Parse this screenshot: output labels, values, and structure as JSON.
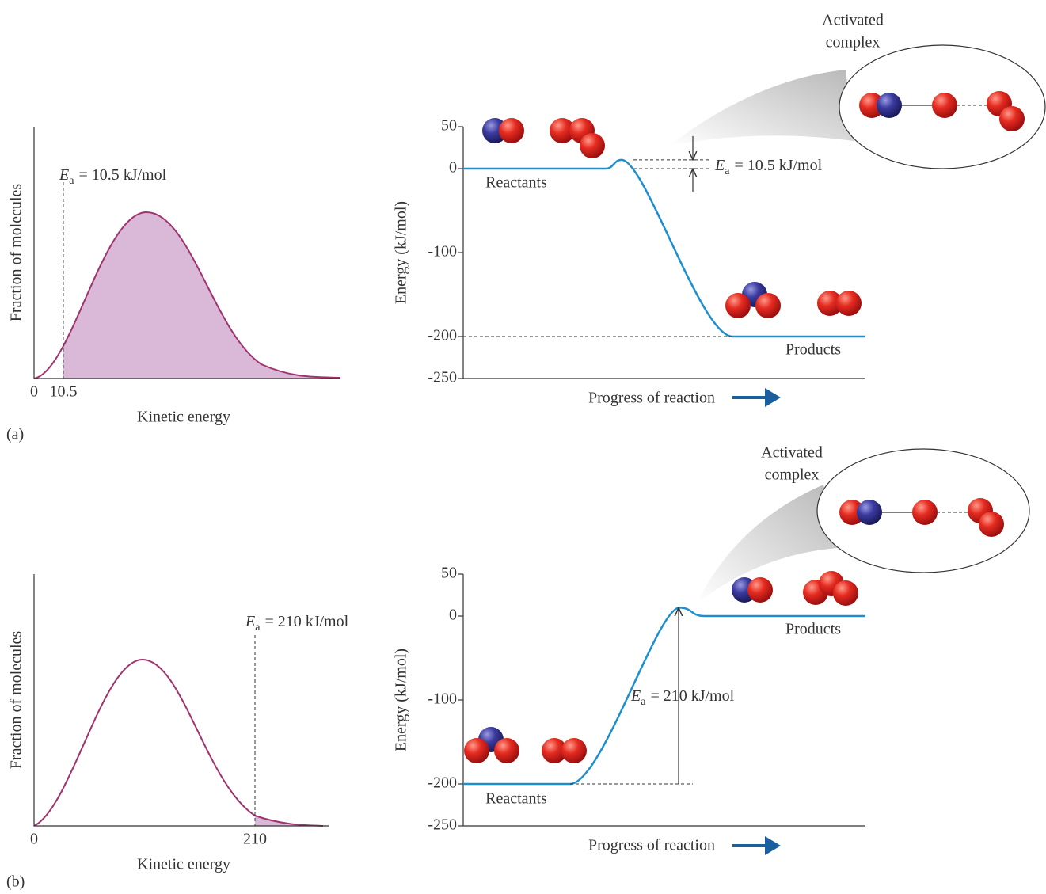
{
  "chart_data": [
    {
      "type": "area",
      "panel": "(a)",
      "xlabel": "Kinetic energy",
      "ylabel": "Fraction of molecules",
      "xlim": [
        0,
        110
      ],
      "xticks": [
        0,
        10.5
      ],
      "fill": "#d9b8d8",
      "color": "#a0336e",
      "ea_label": {
        "symbol": "E",
        "subscript": "a",
        "text": "= 10.5 kJ/mol"
      }
    },
    {
      "type": "line",
      "xlabel": "Progress of reaction",
      "ylabel": "Energy (kJ/mol)",
      "ylim": [
        -250,
        50
      ],
      "yticks": [
        50,
        0,
        -100,
        -200,
        -250
      ],
      "categories": [
        "Reactants",
        null,
        "Products"
      ],
      "values": [
        0,
        10.5,
        -200
      ],
      "color": "#1d8fcf",
      "annotation": [
        "Activated",
        "complex"
      ],
      "ea_label": {
        "symbol": "E",
        "subscript": "a",
        "text": "= 10.5 kJ/mol"
      }
    },
    {
      "type": "area",
      "panel": "(b)",
      "xlabel": "Kinetic energy",
      "ylabel": "Fraction of molecules",
      "xlim": [
        0,
        280
      ],
      "xticks": [
        0,
        210
      ],
      "fill": "#d9b8d8",
      "color": "#a0336e",
      "ea_label": {
        "symbol": "E",
        "subscript": "a",
        "text": "= 210 kJ/mol"
      }
    },
    {
      "type": "line",
      "xlabel": "Progress of reaction",
      "ylabel": "Energy (kJ/mol)",
      "ylim": [
        -250,
        50
      ],
      "yticks": [
        50,
        0,
        -100,
        -200,
        -250
      ],
      "categories": [
        "Reactants",
        null,
        "Products"
      ],
      "values": [
        -200,
        10,
        0
      ],
      "color": "#1d8fcf",
      "annotation": [
        "Activated",
        "complex"
      ],
      "ea_label": {
        "symbol": "E",
        "subscript": "a",
        "text": "= 210 kJ/mol"
      }
    }
  ]
}
